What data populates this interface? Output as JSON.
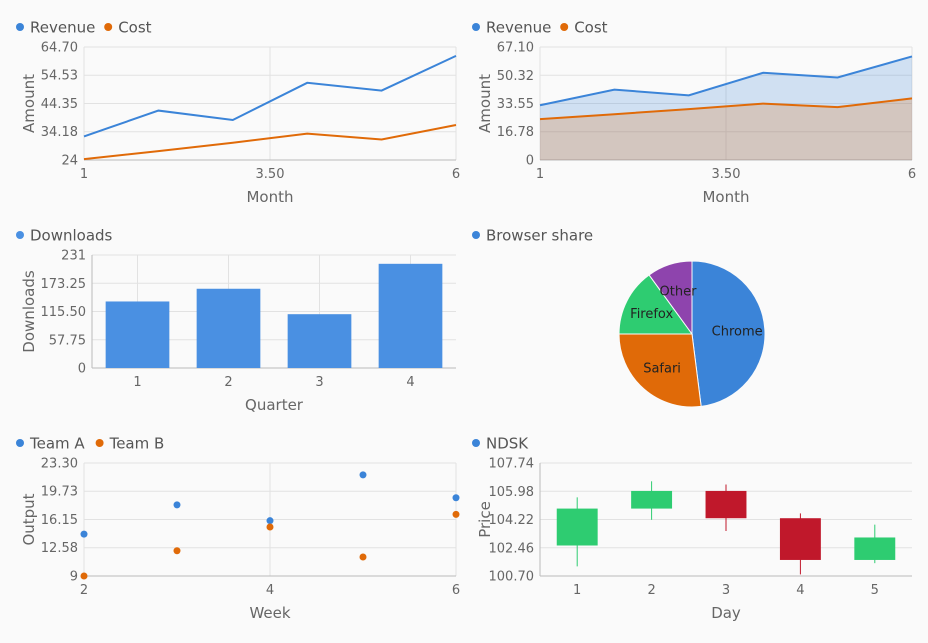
{
  "chart_data": [
    {
      "type": "line",
      "x": [
        1,
        2,
        3,
        4,
        5,
        6
      ],
      "series": [
        {
          "name": "Revenue",
          "color": "#3b84d8",
          "values": [
            32.5,
            41.8,
            38.4,
            51.8,
            49.0,
            61.5
          ]
        },
        {
          "name": "Cost",
          "color": "#e06a08",
          "values": [
            24.3,
            27.2,
            30.2,
            33.5,
            31.4,
            36.6
          ]
        }
      ],
      "xlabel": "Month",
      "ylabel": "Amount",
      "xticks": [
        "1",
        "3.50",
        "6"
      ],
      "yticks": [
        "24",
        "34.18",
        "44.35",
        "54.53",
        "64.70"
      ],
      "xlim": [
        1,
        6
      ],
      "ylim": [
        24,
        64.7
      ],
      "legend": "top-left",
      "grid": true
    },
    {
      "type": "area",
      "x": [
        1,
        2,
        3,
        4,
        5,
        6
      ],
      "series": [
        {
          "name": "Revenue",
          "color": "#3b84d8",
          "values": [
            32.5,
            41.8,
            38.4,
            51.8,
            49.0,
            61.5
          ]
        },
        {
          "name": "Cost",
          "color": "#e06a08",
          "values": [
            24.3,
            27.2,
            30.2,
            33.5,
            31.4,
            36.6
          ]
        }
      ],
      "xlabel": "Month",
      "ylabel": "Amount",
      "xticks": [
        "1",
        "3.50",
        "6"
      ],
      "yticks": [
        "0",
        "16.78",
        "33.55",
        "50.32",
        "67.10"
      ],
      "xlim": [
        1,
        6
      ],
      "ylim": [
        0,
        67.1
      ],
      "legend": "top-left",
      "grid": true
    },
    {
      "type": "bar",
      "categories": [
        "1",
        "2",
        "3",
        "4"
      ],
      "series": [
        {
          "name": "Downloads",
          "color": "#4a90e2",
          "values": [
            136,
            162,
            110,
            213
          ]
        }
      ],
      "xlabel": "Quarter",
      "ylabel": "Downloads",
      "yticks": [
        "0",
        "57.75",
        "115.50",
        "173.25",
        "231"
      ],
      "ylim": [
        0,
        231
      ],
      "legend": "top-left",
      "grid": true
    },
    {
      "type": "pie",
      "title": "Browser share",
      "slices": [
        {
          "label": "Chrome",
          "value": 48,
          "color": "#3b84d8"
        },
        {
          "label": "Safari",
          "value": 27,
          "color": "#e06a08"
        },
        {
          "label": "Firefox",
          "value": 15,
          "color": "#2ecc71"
        },
        {
          "label": "Other",
          "value": 10,
          "color": "#8e44ad"
        }
      ],
      "legend": "top-left"
    },
    {
      "type": "scatter",
      "series": [
        {
          "name": "Team A",
          "color": "#3b84d8",
          "points": [
            [
              2,
              14.3
            ],
            [
              3,
              18.0
            ],
            [
              4,
              16.0
            ],
            [
              5,
              21.8
            ],
            [
              6,
              18.9
            ]
          ]
        },
        {
          "name": "Team B",
          "color": "#e06a08",
          "points": [
            [
              2,
              9.0
            ],
            [
              3,
              12.2
            ],
            [
              4,
              15.2
            ],
            [
              5,
              11.4
            ],
            [
              6,
              16.8
            ]
          ]
        }
      ],
      "xlabel": "Week",
      "ylabel": "Output",
      "xticks": [
        "2",
        "4",
        "6"
      ],
      "yticks": [
        "9",
        "12.58",
        "16.15",
        "19.73",
        "23.30"
      ],
      "xlim": [
        2,
        6
      ],
      "ylim": [
        9,
        23.3
      ],
      "legend": "top-left",
      "grid": true
    },
    {
      "type": "candlestick",
      "categories": [
        "1",
        "2",
        "3",
        "4",
        "5"
      ],
      "series": [
        {
          "name": "NDSK",
          "color": "#3b84d8",
          "ohlc": [
            [
              102.6,
              105.6,
              101.3,
              104.9
            ],
            [
              104.9,
              106.6,
              104.2,
              106.0
            ],
            [
              106.0,
              106.4,
              103.5,
              104.3
            ],
            [
              104.3,
              104.6,
              100.8,
              101.7
            ],
            [
              101.7,
              103.9,
              101.5,
              103.1
            ]
          ]
        }
      ],
      "up_color": "#2ecc71",
      "down_color": "#c0182b",
      "xlabel": "Day",
      "ylabel": "Price",
      "yticks": [
        "100.70",
        "102.46",
        "104.22",
        "105.98",
        "107.74"
      ],
      "ylim": [
        100.7,
        107.74
      ],
      "legend": "top-left",
      "grid": true
    }
  ]
}
